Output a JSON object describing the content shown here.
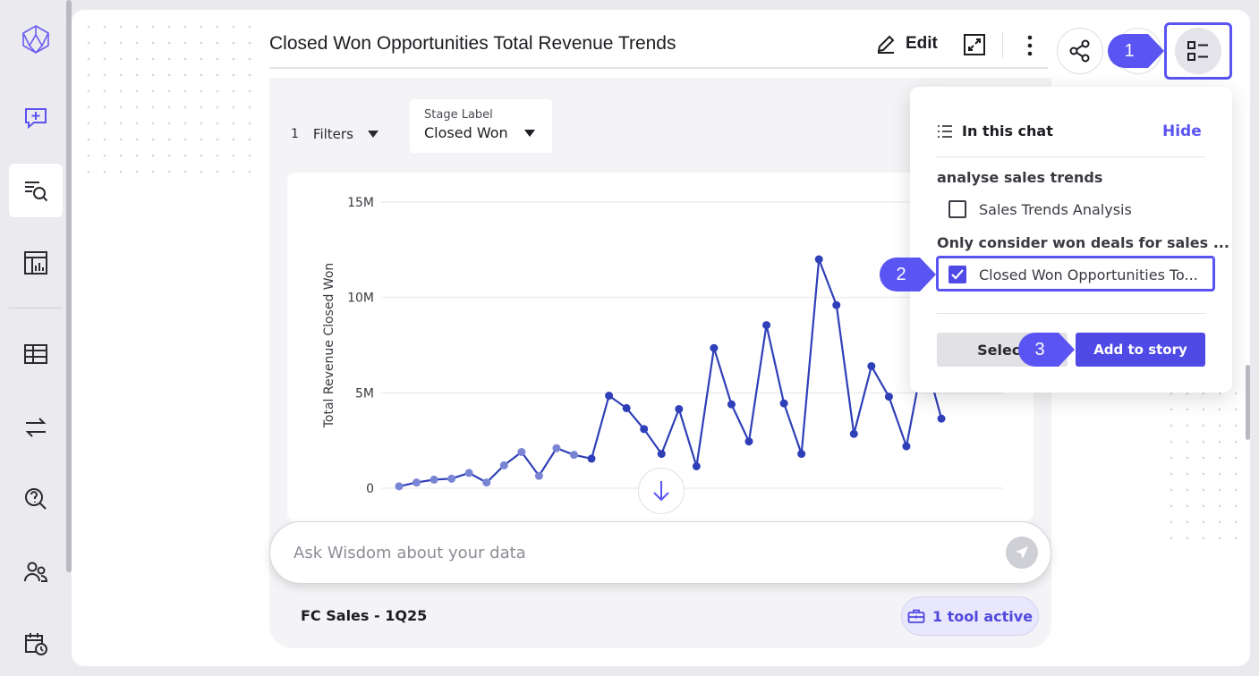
{
  "sidebar": {
    "items": [
      {
        "icon": "logo-icon"
      },
      {
        "icon": "new-chat-icon"
      },
      {
        "icon": "search-list-icon",
        "active": true
      },
      {
        "icon": "report-chart-icon"
      },
      {
        "icon": "table-icon"
      },
      {
        "icon": "transfer-arrows-icon"
      },
      {
        "icon": "question-search-icon"
      },
      {
        "icon": "users-icon"
      },
      {
        "icon": "calendar-clock-icon"
      }
    ]
  },
  "header": {
    "title": "Closed Won Opportunities Total Revenue Trends",
    "edit_label": "Edit"
  },
  "filters": {
    "count": "1",
    "label": "Filters",
    "stage_label": "Stage Label",
    "stage_value": "Closed Won"
  },
  "chart_data": {
    "type": "line",
    "ylabel": "Total Revenue Closed Won",
    "ylim": [
      0,
      15000000
    ],
    "y_ticks": [
      "0",
      "5M",
      "10M",
      "15M"
    ],
    "y_tick_values": [
      0,
      5000000,
      10000000,
      15000000
    ],
    "series": [
      {
        "values": [
          100000,
          300000,
          450000,
          500000,
          800000,
          300000,
          1200000,
          1900000,
          650000,
          2100000,
          1750000,
          1550000,
          4850000,
          4200000,
          3100000,
          1800000,
          4150000,
          1150000,
          7350000,
          4400000,
          2450000,
          8550000,
          4450000,
          1800000,
          12000000,
          9600000,
          2850000,
          6400000,
          4800000,
          2200000,
          7000000,
          3650000
        ]
      }
    ]
  },
  "input": {
    "placeholder": "Ask Wisdom about your data"
  },
  "footer": {
    "dataset": "FC Sales - 1Q25",
    "tools_label": "1 tool active"
  },
  "panel": {
    "title": "In this chat",
    "hide_label": "Hide",
    "groups": [
      {
        "title": "analyse sales trends",
        "items": [
          {
            "label": "Sales Trends Analysis",
            "checked": false
          }
        ]
      },
      {
        "title": "Only consider won deals for sales ...",
        "items": [
          {
            "label": "Closed Won Opportunities To...",
            "checked": true
          }
        ]
      }
    ],
    "select_label": "Select",
    "add_label": "Add to story"
  },
  "callouts": [
    "1",
    "2",
    "3"
  ],
  "colors": {
    "accent": "#5a54f2",
    "line": "#2f3fb8",
    "line_early": "#7a84d4"
  }
}
